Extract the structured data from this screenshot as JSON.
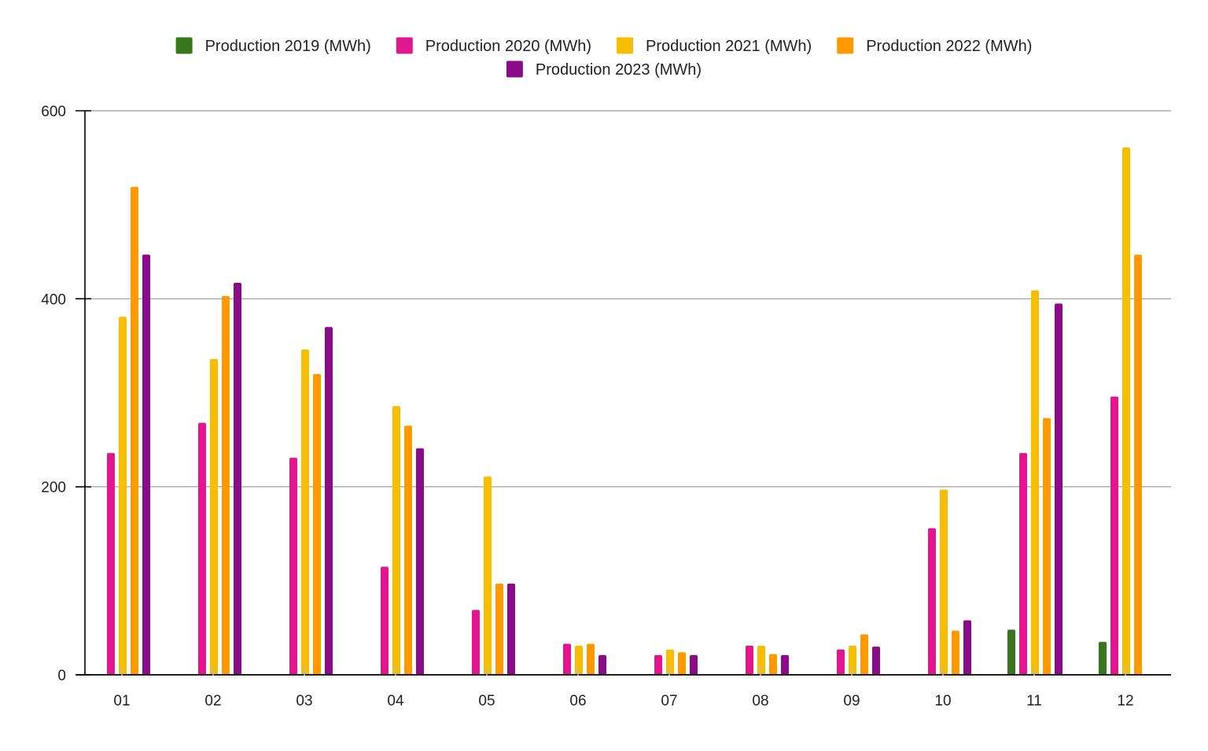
{
  "chart_data": {
    "type": "bar",
    "title": "",
    "xlabel": "",
    "ylabel": "",
    "categories": [
      "01",
      "02",
      "03",
      "04",
      "05",
      "06",
      "07",
      "08",
      "09",
      "10",
      "11",
      "12"
    ],
    "ylim": [
      0,
      600
    ],
    "yticks": [
      0,
      200,
      400,
      600
    ],
    "grid": true,
    "legend_position": "top-center",
    "series": [
      {
        "name": "Production 2019 (MWh)",
        "color": "#38761d",
        "values": [
          null,
          null,
          null,
          null,
          null,
          null,
          null,
          null,
          null,
          null,
          48,
          35
        ]
      },
      {
        "name": "Production 2020 (MWh)",
        "color": "#e0168f",
        "values": [
          236,
          268,
          231,
          115,
          69,
          33,
          21,
          31,
          27,
          156,
          236,
          296
        ]
      },
      {
        "name": "Production 2021 (MWh)",
        "color": "#f9bd00",
        "values": [
          381,
          336,
          346,
          286,
          211,
          31,
          27,
          31,
          31,
          197,
          409,
          561
        ]
      },
      {
        "name": "Production 2022 (MWh)",
        "color": "#ff9900",
        "values": [
          519,
          403,
          320,
          265,
          97,
          33,
          24,
          22,
          43,
          47,
          273,
          447
        ]
      },
      {
        "name": "Production 2023 (MWh)",
        "color": "#8a0a8a",
        "values": [
          447,
          417,
          370,
          241,
          97,
          21,
          21,
          21,
          30,
          58,
          395,
          null
        ]
      }
    ]
  }
}
